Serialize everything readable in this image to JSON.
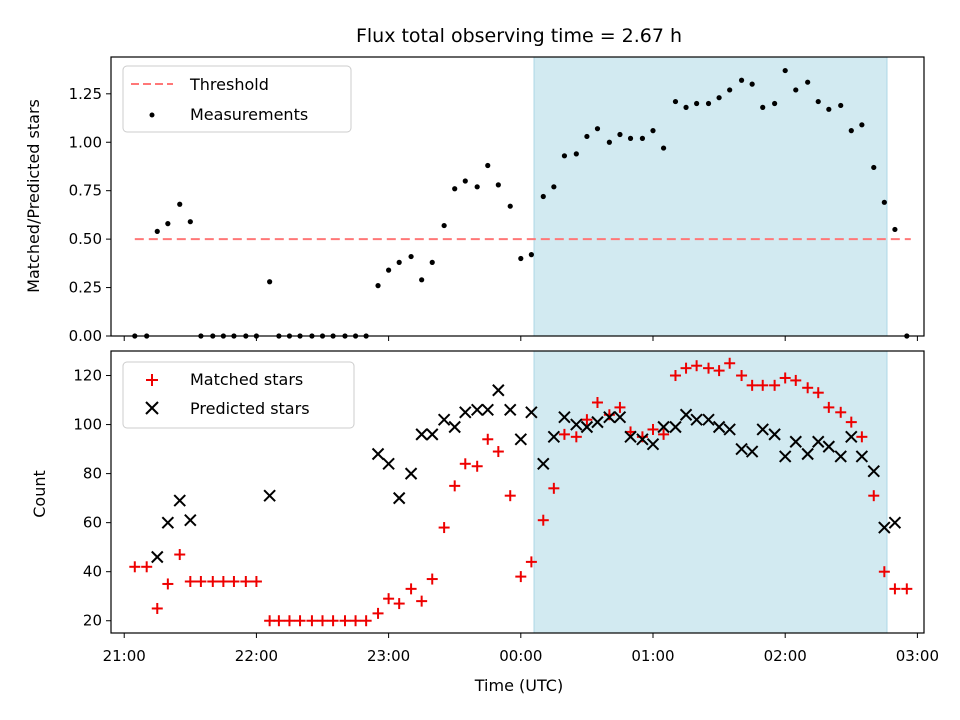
{
  "title": "Flux total observing time = 2.67 h",
  "colors": {
    "threshold": "#ff7777",
    "measurement": "#000000",
    "matched": "#ee0000",
    "predicted": "#000000",
    "shade": "#add8e6"
  },
  "chart_data": [
    {
      "type": "scatter",
      "ylabel": "Matched/Predicted stars",
      "xlabel": "",
      "xlim": [
        20.9,
        27.05
      ],
      "ylim": [
        0,
        1.44
      ],
      "yticks": [
        "0.00",
        "0.25",
        "0.50",
        "0.75",
        "1.00",
        "1.25"
      ],
      "ytick_values": [
        0,
        0.25,
        0.5,
        0.75,
        1.0,
        1.25
      ],
      "grid": false,
      "legend_placement": "top-left",
      "legend": [
        "Threshold",
        "Measurements"
      ],
      "shaded_span": [
        24.1,
        26.77
      ],
      "threshold": {
        "name": "Threshold",
        "y": 0.5,
        "x_range": [
          21.08,
          26.95
        ],
        "style": "dashed"
      },
      "series": [
        {
          "name": "Measurements",
          "points": [
            [
              21.08,
              0.0
            ],
            [
              21.17,
              0.0
            ],
            [
              21.25,
              0.54
            ],
            [
              21.33,
              0.58
            ],
            [
              21.42,
              0.68
            ],
            [
              21.5,
              0.59
            ],
            [
              21.58,
              0.0
            ],
            [
              21.67,
              0.0
            ],
            [
              21.75,
              0.0
            ],
            [
              21.83,
              0.0
            ],
            [
              21.92,
              0.0
            ],
            [
              22.0,
              0.0
            ],
            [
              22.1,
              0.28
            ],
            [
              22.17,
              0.0
            ],
            [
              22.25,
              0.0
            ],
            [
              22.33,
              0.0
            ],
            [
              22.42,
              0.0
            ],
            [
              22.5,
              0.0
            ],
            [
              22.58,
              0.0
            ],
            [
              22.67,
              0.0
            ],
            [
              22.75,
              0.0
            ],
            [
              22.83,
              0.0
            ],
            [
              22.92,
              0.26
            ],
            [
              23.0,
              0.34
            ],
            [
              23.08,
              0.38
            ],
            [
              23.17,
              0.41
            ],
            [
              23.25,
              0.29
            ],
            [
              23.33,
              0.38
            ],
            [
              23.42,
              0.57
            ],
            [
              23.5,
              0.76
            ],
            [
              23.58,
              0.8
            ],
            [
              23.67,
              0.77
            ],
            [
              23.75,
              0.88
            ],
            [
              23.83,
              0.78
            ],
            [
              23.92,
              0.67
            ],
            [
              24.0,
              0.4
            ],
            [
              24.08,
              0.42
            ],
            [
              24.17,
              0.72
            ],
            [
              24.25,
              0.77
            ],
            [
              24.33,
              0.93
            ],
            [
              24.42,
              0.94
            ],
            [
              24.5,
              1.03
            ],
            [
              24.58,
              1.07
            ],
            [
              24.67,
              1.0
            ],
            [
              24.75,
              1.04
            ],
            [
              24.83,
              1.02
            ],
            [
              24.92,
              1.02
            ],
            [
              25.0,
              1.06
            ],
            [
              25.08,
              0.97
            ],
            [
              25.17,
              1.21
            ],
            [
              25.25,
              1.18
            ],
            [
              25.33,
              1.2
            ],
            [
              25.42,
              1.2
            ],
            [
              25.5,
              1.23
            ],
            [
              25.58,
              1.27
            ],
            [
              25.67,
              1.32
            ],
            [
              25.75,
              1.3
            ],
            [
              25.83,
              1.18
            ],
            [
              25.92,
              1.2
            ],
            [
              26.0,
              1.37
            ],
            [
              26.08,
              1.27
            ],
            [
              26.17,
              1.31
            ],
            [
              26.25,
              1.21
            ],
            [
              26.33,
              1.17
            ],
            [
              26.42,
              1.19
            ],
            [
              26.5,
              1.06
            ],
            [
              26.58,
              1.09
            ],
            [
              26.67,
              0.87
            ],
            [
              26.75,
              0.69
            ],
            [
              26.83,
              0.55
            ],
            [
              26.92,
              0.0
            ]
          ]
        }
      ]
    },
    {
      "type": "scatter",
      "ylabel": "Count",
      "xlabel": "Time (UTC)",
      "xlim": [
        20.9,
        27.05
      ],
      "ylim": [
        15,
        130
      ],
      "yticks": [
        "20",
        "40",
        "60",
        "80",
        "100",
        "120"
      ],
      "ytick_values": [
        20,
        40,
        60,
        80,
        100,
        120
      ],
      "xticks": [
        "21:00",
        "22:00",
        "23:00",
        "00:00",
        "01:00",
        "02:00",
        "03:00"
      ],
      "xtick_values": [
        21,
        22,
        23,
        24,
        25,
        26,
        27
      ],
      "grid": false,
      "legend_placement": "top-left",
      "legend": [
        "Matched stars",
        "Predicted stars"
      ],
      "shaded_span": [
        24.1,
        26.77
      ],
      "series": [
        {
          "name": "Matched stars",
          "marker": "+",
          "points": [
            [
              21.08,
              42
            ],
            [
              21.17,
              42
            ],
            [
              21.25,
              25
            ],
            [
              21.33,
              35
            ],
            [
              21.42,
              47
            ],
            [
              21.5,
              36
            ],
            [
              21.58,
              36
            ],
            [
              21.67,
              36
            ],
            [
              21.75,
              36
            ],
            [
              21.83,
              36
            ],
            [
              21.92,
              36
            ],
            [
              22.0,
              36
            ],
            [
              22.1,
              20
            ],
            [
              22.17,
              20
            ],
            [
              22.25,
              20
            ],
            [
              22.33,
              20
            ],
            [
              22.42,
              20
            ],
            [
              22.5,
              20
            ],
            [
              22.58,
              20
            ],
            [
              22.67,
              20
            ],
            [
              22.75,
              20
            ],
            [
              22.83,
              20
            ],
            [
              22.92,
              23
            ],
            [
              23.0,
              29
            ],
            [
              23.08,
              27
            ],
            [
              23.17,
              33
            ],
            [
              23.25,
              28
            ],
            [
              23.33,
              37
            ],
            [
              23.42,
              58
            ],
            [
              23.5,
              75
            ],
            [
              23.58,
              84
            ],
            [
              23.67,
              83
            ],
            [
              23.75,
              94
            ],
            [
              23.83,
              89
            ],
            [
              23.92,
              71
            ],
            [
              24.0,
              38
            ],
            [
              24.08,
              44
            ],
            [
              24.17,
              61
            ],
            [
              24.25,
              74
            ],
            [
              24.33,
              96
            ],
            [
              24.42,
              95
            ],
            [
              24.5,
              102
            ],
            [
              24.58,
              109
            ],
            [
              24.67,
              104
            ],
            [
              24.75,
              107
            ],
            [
              24.83,
              97
            ],
            [
              24.92,
              95
            ],
            [
              25.0,
              98
            ],
            [
              25.08,
              96
            ],
            [
              25.17,
              120
            ],
            [
              25.25,
              123
            ],
            [
              25.33,
              124
            ],
            [
              25.42,
              123
            ],
            [
              25.5,
              122
            ],
            [
              25.58,
              125
            ],
            [
              25.67,
              120
            ],
            [
              25.75,
              116
            ],
            [
              25.83,
              116
            ],
            [
              25.92,
              116
            ],
            [
              26.0,
              119
            ],
            [
              26.08,
              118
            ],
            [
              26.17,
              115
            ],
            [
              26.25,
              113
            ],
            [
              26.33,
              107
            ],
            [
              26.42,
              105
            ],
            [
              26.5,
              101
            ],
            [
              26.58,
              95
            ],
            [
              26.67,
              71
            ],
            [
              26.75,
              40
            ],
            [
              26.83,
              33
            ],
            [
              26.92,
              33
            ]
          ]
        },
        {
          "name": "Predicted stars",
          "marker": "x",
          "points": [
            [
              21.25,
              46
            ],
            [
              21.33,
              60
            ],
            [
              21.42,
              69
            ],
            [
              21.5,
              61
            ],
            [
              22.1,
              71
            ],
            [
              22.92,
              88
            ],
            [
              23.0,
              84
            ],
            [
              23.08,
              70
            ],
            [
              23.17,
              80
            ],
            [
              23.25,
              96
            ],
            [
              23.33,
              96
            ],
            [
              23.42,
              102
            ],
            [
              23.5,
              99
            ],
            [
              23.58,
              105
            ],
            [
              23.67,
              106
            ],
            [
              23.75,
              106
            ],
            [
              23.83,
              114
            ],
            [
              23.92,
              106
            ],
            [
              24.0,
              94
            ],
            [
              24.08,
              105
            ],
            [
              24.17,
              84
            ],
            [
              24.25,
              95
            ],
            [
              24.33,
              103
            ],
            [
              24.42,
              100
            ],
            [
              24.5,
              99
            ],
            [
              24.58,
              101
            ],
            [
              24.67,
              103
            ],
            [
              24.75,
              103
            ],
            [
              24.83,
              95
            ],
            [
              24.92,
              94
            ],
            [
              25.0,
              92
            ],
            [
              25.08,
              99
            ],
            [
              25.17,
              99
            ],
            [
              25.25,
              104
            ],
            [
              25.33,
              102
            ],
            [
              25.42,
              102
            ],
            [
              25.5,
              99
            ],
            [
              25.58,
              98
            ],
            [
              25.67,
              90
            ],
            [
              25.75,
              89
            ],
            [
              25.83,
              98
            ],
            [
              25.92,
              96
            ],
            [
              26.0,
              87
            ],
            [
              26.08,
              93
            ],
            [
              26.17,
              88
            ],
            [
              26.25,
              93
            ],
            [
              26.33,
              91
            ],
            [
              26.42,
              87
            ],
            [
              26.5,
              95
            ],
            [
              26.58,
              87
            ],
            [
              26.67,
              81
            ],
            [
              26.75,
              58
            ],
            [
              26.83,
              60
            ]
          ]
        }
      ]
    }
  ]
}
